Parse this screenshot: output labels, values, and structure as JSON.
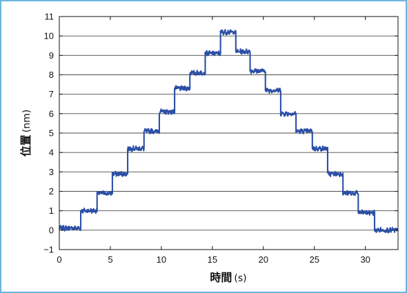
{
  "chart_data": {
    "type": "line",
    "xlabel_main": "時間",
    "xlabel_unit": "(s)",
    "ylabel_main": "位置",
    "ylabel_unit": "(nm)",
    "xlim": [
      0,
      33.2
    ],
    "ylim": [
      -1,
      11
    ],
    "xticks": [
      0,
      5,
      10,
      15,
      20,
      25,
      30
    ],
    "yticks": [
      -1,
      0,
      1,
      2,
      3,
      4,
      5,
      6,
      7,
      8,
      9,
      10,
      11
    ],
    "grid": "horizontal",
    "series_color": "#2b4fa6",
    "steps": [
      {
        "start": 0.0,
        "end": 2.1,
        "value": 0.1
      },
      {
        "start": 2.1,
        "end": 3.7,
        "value": 1.0
      },
      {
        "start": 3.7,
        "end": 5.2,
        "value": 1.9
      },
      {
        "start": 5.2,
        "end": 6.7,
        "value": 2.9
      },
      {
        "start": 6.7,
        "end": 8.3,
        "value": 4.2
      },
      {
        "start": 8.3,
        "end": 9.8,
        "value": 5.1
      },
      {
        "start": 9.8,
        "end": 11.3,
        "value": 6.1
      },
      {
        "start": 11.3,
        "end": 12.8,
        "value": 7.3
      },
      {
        "start": 12.8,
        "end": 14.3,
        "value": 8.1
      },
      {
        "start": 14.3,
        "end": 15.8,
        "value": 9.1
      },
      {
        "start": 15.8,
        "end": 17.3,
        "value": 10.2
      },
      {
        "start": 17.3,
        "end": 18.7,
        "value": 9.2
      },
      {
        "start": 18.7,
        "end": 20.2,
        "value": 8.2
      },
      {
        "start": 20.2,
        "end": 21.7,
        "value": 7.2
      },
      {
        "start": 21.7,
        "end": 23.2,
        "value": 6.0
      },
      {
        "start": 23.2,
        "end": 24.8,
        "value": 5.1
      },
      {
        "start": 24.8,
        "end": 26.3,
        "value": 4.2
      },
      {
        "start": 26.3,
        "end": 27.8,
        "value": 2.9
      },
      {
        "start": 27.8,
        "end": 29.3,
        "value": 1.9
      },
      {
        "start": 29.3,
        "end": 30.9,
        "value": 0.9
      },
      {
        "start": 30.9,
        "end": 33.2,
        "value": 0.0
      }
    ]
  }
}
